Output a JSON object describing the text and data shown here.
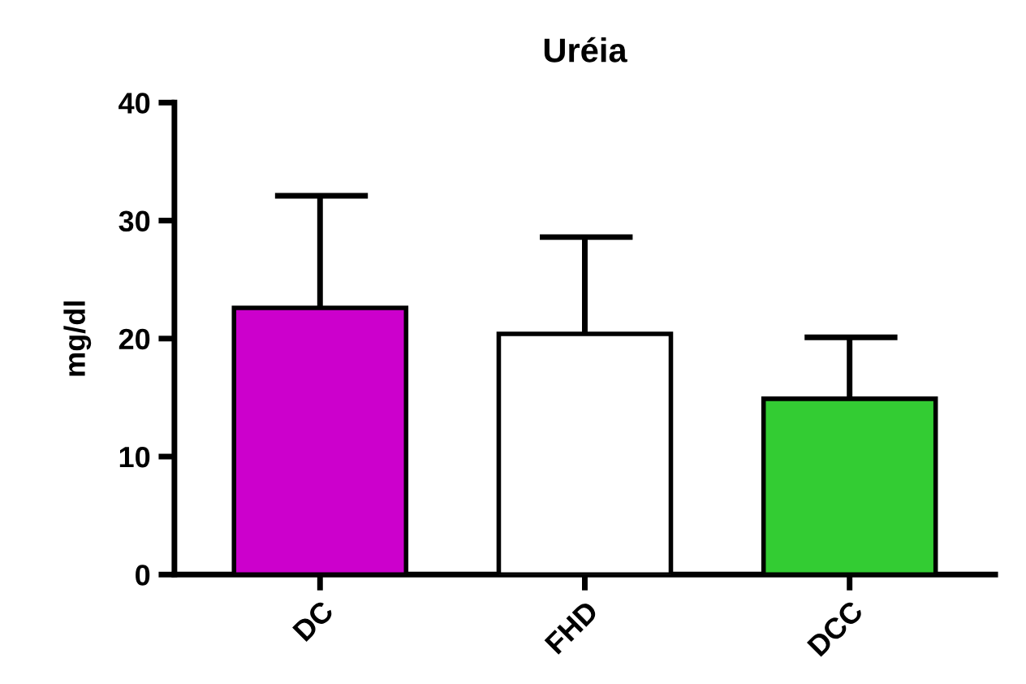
{
  "chart_data": {
    "type": "bar",
    "title": "Uréia",
    "ylabel": "mg/dl",
    "categories": [
      "DC",
      "FHD",
      "DCC"
    ],
    "values": [
      22.6,
      20.4,
      14.9
    ],
    "errors": [
      [
        22.6,
        32.1
      ],
      [
        20.4,
        28.6
      ],
      [
        14.9,
        20.1
      ]
    ],
    "colors": [
      "#cc00cc",
      "#ffffff",
      "#33cc33"
    ],
    "ylim": [
      0,
      40
    ],
    "yticks": [
      0,
      10,
      20,
      30,
      40
    ],
    "grid": false,
    "legend": false
  }
}
